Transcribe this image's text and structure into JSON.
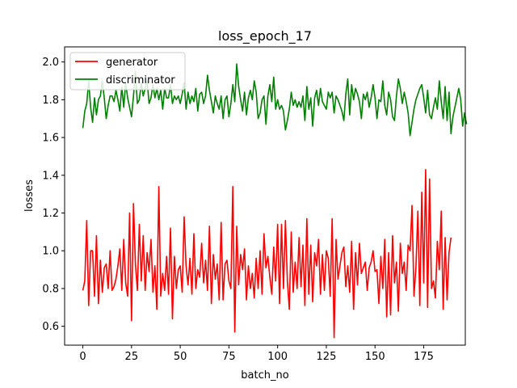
{
  "chart_data": {
    "type": "line",
    "title": "loss_epoch_17",
    "xlabel": "batch_no",
    "ylabel": "losses",
    "xlim": [
      -9.35,
      196.35
    ],
    "ylim": [
      0.5,
      2.08
    ],
    "xticks": [
      0,
      25,
      50,
      75,
      100,
      125,
      150,
      175
    ],
    "yticks": [
      0.6,
      0.8,
      1.0,
      1.2,
      1.4,
      1.6,
      1.8,
      2.0
    ],
    "xtick_labels": [
      "0",
      "25",
      "50",
      "75",
      "100",
      "125",
      "150",
      "175"
    ],
    "ytick_labels": [
      "0.6",
      "0.8",
      "1.0",
      "1.2",
      "1.4",
      "1.6",
      "1.8",
      "2.0"
    ],
    "grid": false,
    "legend_position": "top-left",
    "series": [
      {
        "name": "generator",
        "color": "#ff0000",
        "values": [
          0.79,
          0.84,
          1.16,
          0.71,
          1.0,
          1.0,
          0.76,
          1.08,
          0.72,
          0.95,
          0.78,
          0.91,
          0.93,
          0.8,
          1.0,
          0.79,
          0.81,
          0.85,
          0.92,
          1.01,
          0.79,
          1.06,
          0.83,
          0.76,
          1.2,
          0.63,
          1.25,
          0.93,
          0.79,
          1.14,
          0.84,
          1.08,
          0.79,
          0.99,
          0.89,
          1.06,
          0.78,
          0.92,
          0.69,
          1.34,
          0.76,
          0.88,
          0.79,
          0.97,
          0.77,
          1.12,
          0.64,
          0.97,
          0.8,
          0.9,
          0.92,
          0.78,
          1.18,
          0.92,
          0.82,
          0.96,
          0.77,
          1.09,
          0.8,
          0.9,
          0.86,
          1.04,
          0.83,
          0.95,
          0.79,
          1.13,
          0.72,
          0.98,
          0.85,
          0.93,
          0.74,
          1.15,
          0.74,
          0.93,
          0.95,
          0.84,
          0.8,
          1.34,
          0.57,
          1.13,
          0.82,
          0.98,
          0.9,
          1.01,
          0.74,
          0.92,
          0.8,
          0.88,
          0.75,
          0.96,
          0.8,
          1.0,
          0.77,
          1.09,
          0.91,
          0.97,
          0.86,
          0.77,
          1.02,
          0.84,
          1.14,
          0.72,
          1.14,
          0.8,
          1.16,
          0.84,
          0.69,
          1.1,
          0.78,
          0.94,
          0.8,
          1.07,
          0.81,
          1.03,
          0.71,
          1.17,
          0.77,
          1.03,
          0.73,
          0.99,
          0.92,
          1.06,
          0.77,
          0.98,
          0.79,
          1.0,
          0.96,
          0.76,
          1.17,
          0.54,
          1.06,
          0.85,
          0.92,
          0.99,
          1.02,
          0.81,
          0.92,
          0.78,
          1.05,
          0.69,
          0.99,
          0.82,
          1.04,
          0.88,
          0.91,
          0.94,
          0.79,
          0.91,
          0.94,
          1.0,
          0.89,
          0.9,
          0.72,
          0.97,
          0.8,
          1.06,
          0.65,
          0.99,
          0.66,
          1.08,
          0.83,
          0.94,
          0.68,
          1.04,
          0.88,
          0.94,
          0.79,
          1.03,
          1.0,
          1.24,
          0.76,
          0.91,
          1.21,
          0.71,
          1.31,
          0.83,
          1.43,
          0.7,
          1.38,
          0.8,
          0.84,
          0.75,
          1.05,
          0.9,
          1.21,
          0.69,
          1.07,
          0.74,
          0.99,
          1.07
        ]
      },
      {
        "name": "discriminator",
        "color": "#008000",
        "values": [
          1.65,
          1.74,
          1.78,
          1.9,
          1.76,
          1.68,
          1.81,
          1.72,
          1.8,
          1.82,
          1.9,
          1.81,
          1.7,
          1.77,
          1.82,
          1.82,
          1.79,
          1.85,
          1.8,
          1.74,
          1.87,
          1.76,
          1.89,
          1.81,
          1.76,
          1.71,
          1.82,
          1.95,
          1.78,
          1.8,
          1.89,
          1.82,
          1.86,
          1.9,
          1.78,
          1.81,
          1.88,
          1.81,
          1.86,
          1.8,
          1.85,
          1.75,
          1.86,
          1.81,
          1.81,
          1.88,
          1.78,
          1.82,
          1.8,
          1.82,
          1.78,
          1.83,
          1.89,
          1.75,
          1.84,
          1.78,
          1.82,
          1.79,
          1.86,
          1.74,
          1.83,
          1.84,
          1.78,
          1.82,
          1.93,
          1.85,
          1.79,
          1.73,
          1.82,
          1.78,
          1.75,
          1.82,
          1.7,
          1.8,
          1.82,
          1.71,
          1.78,
          1.88,
          1.79,
          1.99,
          1.87,
          1.8,
          1.74,
          1.84,
          1.72,
          1.81,
          1.85,
          1.8,
          1.9,
          1.84,
          1.7,
          1.73,
          1.8,
          1.82,
          1.67,
          1.82,
          1.88,
          1.79,
          1.92,
          1.75,
          1.8,
          1.75,
          1.77,
          1.74,
          1.64,
          1.69,
          1.75,
          1.84,
          1.77,
          1.8,
          1.76,
          1.79,
          1.76,
          1.82,
          1.69,
          1.87,
          1.75,
          1.81,
          1.66,
          1.81,
          1.85,
          1.77,
          1.86,
          1.79,
          1.77,
          1.75,
          1.84,
          1.81,
          1.84,
          1.73,
          1.82,
          1.8,
          1.77,
          1.74,
          1.69,
          1.83,
          1.91,
          1.72,
          1.88,
          1.8,
          1.86,
          1.83,
          1.79,
          1.7,
          1.83,
          1.8,
          1.84,
          1.76,
          1.81,
          1.88,
          1.81,
          1.7,
          1.8,
          1.79,
          1.9,
          1.77,
          1.72,
          1.84,
          1.8,
          1.71,
          1.69,
          1.82,
          1.91,
          1.86,
          1.78,
          1.84,
          1.79,
          1.73,
          1.61,
          1.68,
          1.75,
          1.8,
          1.83,
          1.86,
          1.88,
          1.81,
          1.73,
          1.85,
          1.72,
          1.7,
          1.76,
          1.81,
          1.75,
          1.9,
          1.79,
          1.7,
          1.87,
          1.69,
          1.84,
          1.62,
          1.71,
          1.76,
          1.81,
          1.86,
          1.8,
          1.66,
          1.73,
          1.67
        ]
      }
    ]
  }
}
